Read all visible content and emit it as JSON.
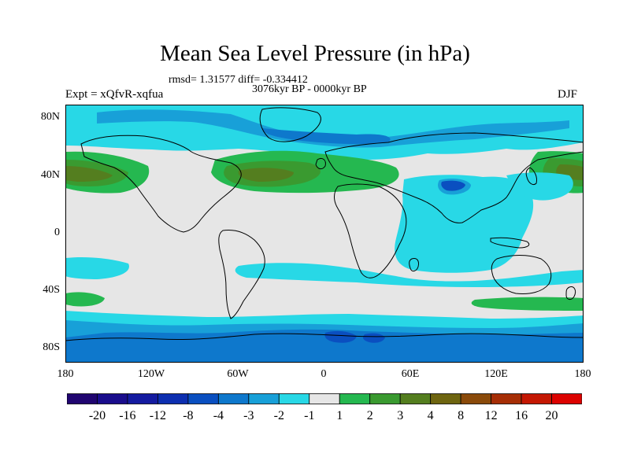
{
  "title": "Mean Sea Level Pressure (in hPa)",
  "subtitle_rmsd": "rmsd= 1.31577 diff= -0.334412",
  "subtitle_period": "3076kyr BP - 0000kyr BP",
  "left_label": "Expt = xQfvR-xqfua",
  "right_label": "DJF",
  "lat_ticks": [
    "80N",
    "40N",
    "0",
    "40S",
    "80S"
  ],
  "lon_ticks": [
    "180",
    "120W",
    "60W",
    "0",
    "60E",
    "120E",
    "180"
  ],
  "colorbar": {
    "labels": [
      "-20",
      "-16",
      "-12",
      "-8",
      "-4",
      "-3",
      "-2",
      "-1",
      "1",
      "2",
      "3",
      "4",
      "8",
      "12",
      "16",
      "20"
    ],
    "colors": [
      "#200570",
      "#1a0d8c",
      "#141ba0",
      "#0d2fb0",
      "#0a4fc0",
      "#0e78cc",
      "#18a0d8",
      "#28d8e6",
      "#e6e6e6",
      "#25b850",
      "#3a9a30",
      "#547e1f",
      "#6e6510",
      "#8a4a0a",
      "#a62e06",
      "#c41703",
      "#dc0200"
    ]
  },
  "map_colors": {
    "neutral": "#e6e6e6",
    "neg1": "#28d8e6",
    "neg2": "#18a0d8",
    "neg3": "#0e78cc",
    "neg4": "#0a4fc0",
    "pos1": "#25b850",
    "pos2": "#3a9a30",
    "pos3": "#547e1f",
    "coast": "#000000"
  }
}
